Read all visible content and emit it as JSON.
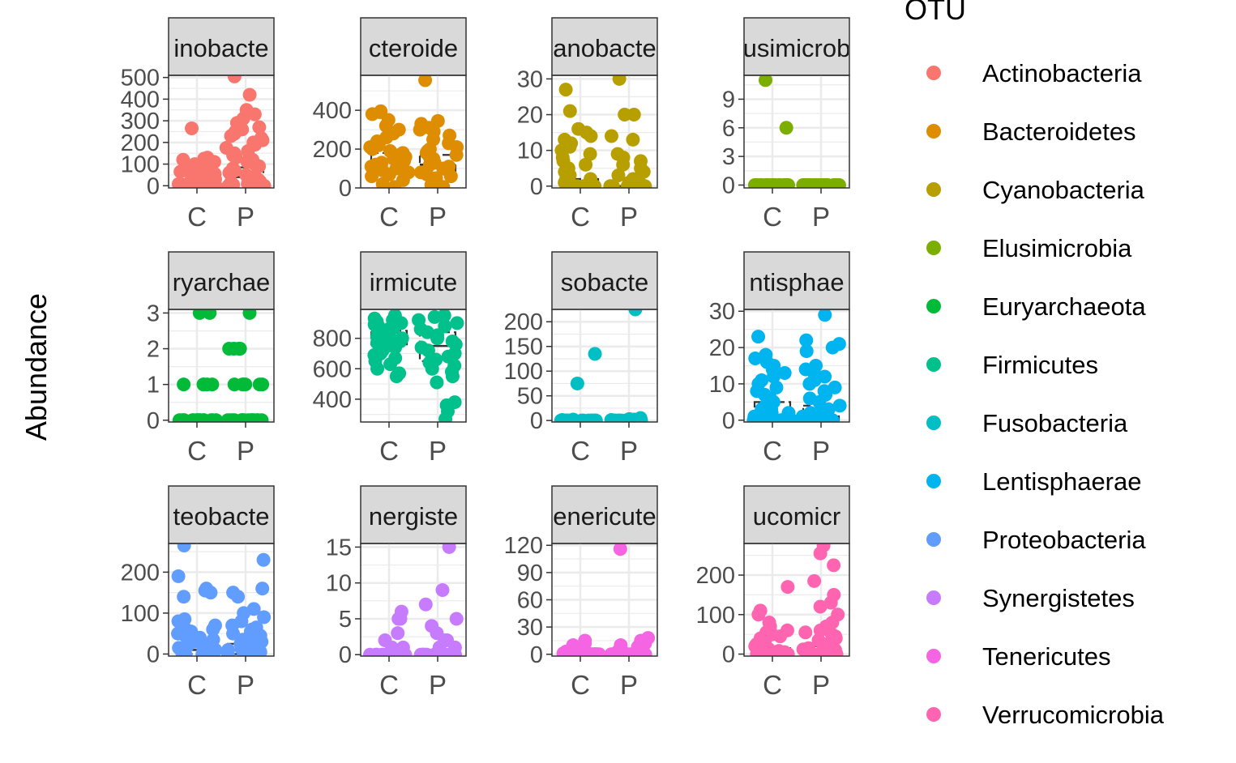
{
  "chart_data": {
    "type": "scatter",
    "title": "",
    "ylabel": "Abundance",
    "xlabel": "",
    "legend": {
      "title": "OTU",
      "placement": "right",
      "items": [
        {
          "label": "Actinobacteria",
          "color": "#F8766D"
        },
        {
          "label": "Bacteroidetes",
          "color": "#DE8C00"
        },
        {
          "label": "Cyanobacteria",
          "color": "#B79F00"
        },
        {
          "label": "Elusimicrobia",
          "color": "#7CAE00"
        },
        {
          "label": "Euryarchaeota",
          "color": "#00BA38"
        },
        {
          "label": "Firmicutes",
          "color": "#00C08B"
        },
        {
          "label": "Fusobacteria",
          "color": "#00BFC4"
        },
        {
          "label": "Lentisphaerae",
          "color": "#00B4F0"
        },
        {
          "label": "Proteobacteria",
          "color": "#619CFF"
        },
        {
          "label": "Synergistetes",
          "color": "#C77CFF"
        },
        {
          "label": "Tenericutes",
          "color": "#F564E3"
        },
        {
          "label": "Verrucomicrobia",
          "color": "#FF64B0"
        }
      ]
    },
    "facets": [
      {
        "strip": "inobacte",
        "otu": "Actinobacteria",
        "color": "#F8766D",
        "ylim": [
          -10,
          510
        ],
        "yticks": [
          0,
          100,
          200,
          300,
          400,
          500
        ],
        "grid_minor": true,
        "box": {
          "C": [
            0,
            10,
            30
          ],
          "P": [
            5,
            40,
            85
          ]
        },
        "points": {
          "C": [
            0,
            0,
            0,
            0,
            0,
            0,
            0,
            3,
            5,
            8,
            10,
            12,
            15,
            18,
            20,
            22,
            25,
            28,
            30,
            35,
            40,
            45,
            50,
            55,
            60,
            65,
            70,
            80,
            90,
            100,
            110,
            120,
            125,
            130,
            265
          ],
          "P": [
            0,
            0,
            0,
            0,
            5,
            10,
            15,
            20,
            30,
            40,
            50,
            60,
            70,
            80,
            90,
            100,
            110,
            120,
            130,
            140,
            150,
            160,
            175,
            190,
            200,
            210,
            220,
            230,
            240,
            250,
            260,
            270,
            290,
            310,
            330,
            350,
            420,
            505
          ]
        }
      },
      {
        "strip": "cteroide",
        "otu": "Bacteroidetes",
        "color": "#DE8C00",
        "ylim": [
          0,
          580
        ],
        "yticks": [
          0,
          200,
          400
        ],
        "grid_minor": true,
        "box": {
          "C": [
            80,
            140,
            180
          ],
          "P": [
            70,
            120,
            170
          ]
        },
        "points": {
          "C": [
            5,
            20,
            40,
            60,
            70,
            80,
            90,
            100,
            110,
            120,
            130,
            140,
            150,
            160,
            170,
            180,
            190,
            200,
            210,
            220,
            230,
            240,
            260,
            280,
            300,
            320,
            350,
            380,
            390,
            395
          ],
          "P": [
            5,
            15,
            30,
            50,
            60,
            70,
            80,
            90,
            100,
            110,
            120,
            130,
            140,
            150,
            160,
            170,
            180,
            190,
            200,
            210,
            230,
            250,
            270,
            290,
            300,
            310,
            330,
            345,
            555
          ]
        }
      },
      {
        "strip": "anobacte",
        "otu": "Cyanobacteria",
        "color": "#B79F00",
        "ylim": [
          -0.5,
          31
        ],
        "yticks": [
          0,
          10,
          20,
          30
        ],
        "grid_minor": true,
        "box": {
          "C": [
            0,
            0,
            2
          ],
          "P": [
            0,
            0,
            1
          ]
        },
        "points": {
          "C": [
            0,
            0,
            0,
            0,
            0,
            0,
            0,
            0,
            0,
            0,
            1,
            1,
            2,
            2,
            3,
            4,
            5,
            6,
            7,
            8,
            9,
            10,
            11,
            12,
            13,
            14,
            15,
            16,
            21,
            27
          ],
          "P": [
            0,
            0,
            0,
            0,
            0,
            0,
            0,
            0,
            0,
            0,
            0,
            1,
            1,
            2,
            2,
            3,
            4,
            5,
            6,
            7,
            8,
            9,
            13,
            14,
            20,
            20,
            30
          ]
        }
      },
      {
        "strip": "usimicrob",
        "otu": "Elusimicrobia",
        "color": "#7CAE00",
        "ylim": [
          -0.3,
          11.5
        ],
        "yticks": [
          0,
          3,
          6,
          9
        ],
        "grid_minor": true,
        "box": {
          "C": [
            0,
            0,
            0
          ],
          "P": [
            0,
            0,
            0
          ]
        },
        "points": {
          "C": [
            0,
            0,
            0,
            0,
            0,
            0,
            0,
            0,
            0,
            0,
            0,
            0,
            0,
            0,
            0,
            0,
            0,
            0,
            0,
            6,
            11
          ],
          "P": [
            0,
            0,
            0,
            0,
            0,
            0,
            0,
            0,
            0,
            0,
            0,
            0,
            0,
            0,
            0,
            0,
            0,
            0,
            0,
            0,
            0
          ]
        }
      },
      {
        "strip": "ryarchae",
        "otu": "Euryarchaeota",
        "color": "#00BA38",
        "ylim": [
          -0.05,
          3.1
        ],
        "yticks": [
          0,
          1,
          2,
          3
        ],
        "grid_minor": true,
        "box": {
          "C": [
            0,
            0,
            0
          ],
          "P": [
            0,
            0,
            0
          ]
        },
        "points": {
          "C": [
            0,
            0,
            0,
            0,
            0,
            0,
            0,
            0,
            0,
            0,
            0,
            0,
            0,
            0,
            0,
            0,
            0,
            1,
            1,
            1,
            1,
            1,
            3,
            3
          ],
          "P": [
            0,
            0,
            0,
            0,
            0,
            0,
            0,
            0,
            0,
            0,
            0,
            0,
            0,
            0,
            0,
            0,
            1,
            1,
            1,
            1,
            1,
            1,
            2,
            2,
            2,
            2,
            3
          ]
        }
      },
      {
        "strip": "irmicute",
        "otu": "Firmicutes",
        "color": "#00C08B",
        "ylim": [
          250,
          990
        ],
        "yticks": [
          400,
          600,
          800
        ],
        "grid_minor": true,
        "box": {
          "C": [
            760,
            805,
            850
          ],
          "P": [
            650,
            750,
            840
          ]
        },
        "points": {
          "C": [
            550,
            570,
            600,
            630,
            650,
            670,
            690,
            700,
            720,
            740,
            750,
            760,
            770,
            780,
            790,
            800,
            810,
            820,
            830,
            840,
            850,
            860,
            870,
            880,
            890,
            900,
            910,
            920,
            930,
            940,
            950
          ],
          "P": [
            270,
            320,
            360,
            380,
            510,
            550,
            580,
            600,
            620,
            640,
            660,
            680,
            700,
            720,
            740,
            760,
            780,
            800,
            820,
            840,
            860,
            880,
            900,
            920,
            940,
            950
          ]
        }
      },
      {
        "strip": "sobacte",
        "otu": "Fusobacteria",
        "color": "#00BFC4",
        "ylim": [
          -3,
          225
        ],
        "yticks": [
          0,
          50,
          100,
          150,
          200
        ],
        "grid_minor": true,
        "box": {
          "C": [
            0,
            0,
            0
          ],
          "P": [
            0,
            0,
            0
          ]
        },
        "points": {
          "C": [
            0,
            0,
            0,
            0,
            0,
            0,
            0,
            0,
            0,
            0,
            0,
            0,
            0,
            0,
            0,
            0,
            0,
            0,
            0,
            0,
            1,
            2,
            75,
            135
          ],
          "P": [
            0,
            0,
            0,
            0,
            0,
            0,
            0,
            0,
            0,
            0,
            0,
            0,
            0,
            0,
            0,
            0,
            0,
            0,
            0,
            1,
            2,
            3,
            5,
            225
          ]
        }
      },
      {
        "strip": "ntisphae",
        "otu": "Lentisphaerae",
        "color": "#00B4F0",
        "ylim": [
          -0.5,
          30.5
        ],
        "yticks": [
          0,
          10,
          20,
          30
        ],
        "grid_minor": true,
        "box": {
          "C": [
            0,
            1,
            5
          ],
          "P": [
            0,
            1,
            4
          ]
        },
        "points": {
          "C": [
            0,
            0,
            0,
            0,
            0,
            0,
            0,
            0,
            0,
            1,
            1,
            2,
            2,
            3,
            3,
            4,
            5,
            6,
            7,
            8,
            9,
            10,
            11,
            12,
            13,
            14,
            15,
            16,
            17,
            18,
            23
          ],
          "P": [
            0,
            0,
            0,
            0,
            0,
            0,
            0,
            0,
            0,
            1,
            1,
            2,
            2,
            3,
            4,
            5,
            6,
            7,
            8,
            9,
            10,
            11,
            12,
            13,
            14,
            15,
            19,
            20,
            21,
            22,
            29
          ]
        }
      },
      {
        "strip": "teobacte",
        "otu": "Proteobacteria",
        "color": "#619CFF",
        "ylim": [
          -5,
          270
        ],
        "yticks": [
          0,
          100,
          200
        ],
        "grid_minor": true,
        "box": {
          "C": [
            0,
            10,
            25
          ],
          "P": [
            0,
            10,
            25
          ]
        },
        "points": {
          "C": [
            0,
            0,
            0,
            0,
            2,
            5,
            8,
            10,
            12,
            15,
            18,
            20,
            25,
            30,
            35,
            40,
            45,
            50,
            55,
            60,
            65,
            70,
            80,
            85,
            140,
            150,
            155,
            160,
            190,
            265
          ],
          "P": [
            0,
            0,
            0,
            0,
            2,
            5,
            8,
            10,
            12,
            15,
            18,
            20,
            25,
            30,
            35,
            40,
            45,
            50,
            55,
            60,
            65,
            70,
            80,
            90,
            100,
            110,
            140,
            150,
            160,
            230
          ]
        }
      },
      {
        "strip": "nergiste",
        "otu": "Synergistetes",
        "color": "#C77CFF",
        "ylim": [
          -0.2,
          15.5
        ],
        "yticks": [
          0,
          5,
          10,
          15
        ],
        "grid_minor": true,
        "box": {
          "C": [
            0,
            0,
            0
          ],
          "P": [
            0,
            0,
            0
          ]
        },
        "points": {
          "C": [
            0,
            0,
            0,
            0,
            0,
            0,
            0,
            0,
            0,
            0,
            0,
            0,
            0,
            0,
            0,
            0,
            1,
            1,
            2,
            3,
            5,
            5,
            6
          ],
          "P": [
            0,
            0,
            0,
            0,
            0,
            0,
            0,
            0,
            0,
            0,
            0,
            0,
            0,
            0,
            0,
            1,
            1,
            2,
            2,
            3,
            4,
            5,
            7,
            9,
            15
          ]
        }
      },
      {
        "strip": "enericute",
        "otu": "Tenericutes",
        "color": "#F564E3",
        "ylim": [
          -2,
          122
        ],
        "yticks": [
          0,
          30,
          60,
          90,
          120
        ],
        "grid_minor": true,
        "box": {
          "C": [
            0,
            0,
            0
          ],
          "P": [
            0,
            0,
            0
          ]
        },
        "points": {
          "C": [
            0,
            0,
            0,
            0,
            0,
            0,
            0,
            0,
            0,
            0,
            0,
            0,
            0,
            0,
            0,
            1,
            2,
            3,
            5,
            8,
            10,
            12,
            15
          ],
          "P": [
            0,
            0,
            0,
            0,
            0,
            0,
            0,
            0,
            0,
            0,
            0,
            0,
            0,
            0,
            1,
            2,
            3,
            5,
            8,
            10,
            12,
            15,
            18,
            116
          ]
        }
      },
      {
        "strip": "ucomicr",
        "otu": "Verrucomicrobia",
        "color": "#FF64B0",
        "ylim": [
          -5,
          280
        ],
        "yticks": [
          0,
          100,
          200
        ],
        "grid_minor": true,
        "box": {
          "C": [
            0,
            5,
            15
          ],
          "P": [
            0,
            8,
            20
          ]
        },
        "points": {
          "C": [
            0,
            0,
            0,
            0,
            0,
            2,
            5,
            8,
            10,
            12,
            15,
            18,
            20,
            25,
            30,
            35,
            40,
            45,
            50,
            55,
            60,
            70,
            80,
            100,
            110,
            170
          ],
          "P": [
            0,
            0,
            0,
            0,
            0,
            2,
            5,
            8,
            10,
            12,
            15,
            18,
            20,
            25,
            30,
            35,
            40,
            45,
            50,
            55,
            60,
            70,
            80,
            100,
            120,
            130,
            150,
            185,
            225,
            255,
            275
          ]
        }
      }
    ],
    "x_categories": [
      "C",
      "P"
    ]
  }
}
